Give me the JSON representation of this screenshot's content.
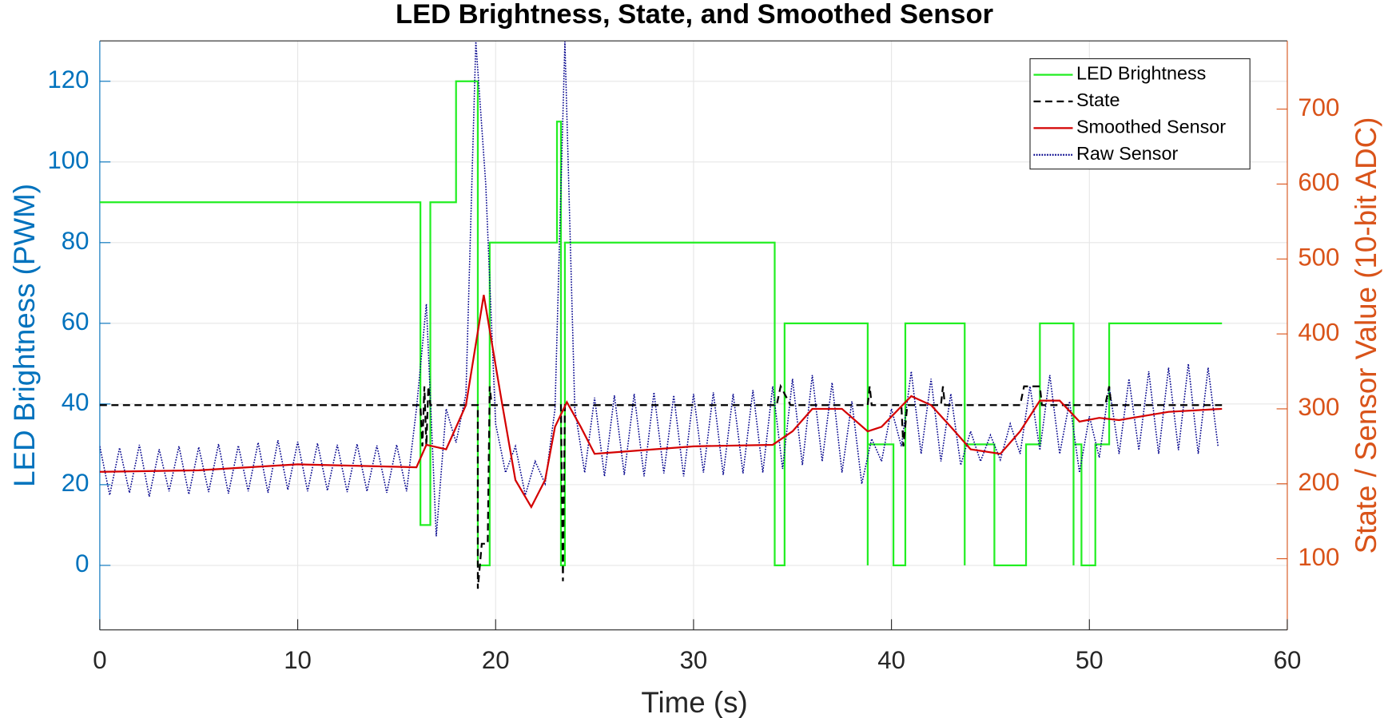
{
  "chart_data": {
    "type": "line",
    "title": "LED Brightness, State, and Smoothed Sensor",
    "xlabel": "Time (s)",
    "ylabel": "LED Brightness (PWM)",
    "y2label": "State / Sensor Value (10-bit ADC)",
    "xlim": [
      0,
      60
    ],
    "xticks": [
      0,
      10,
      20,
      30,
      40,
      50,
      60
    ],
    "ylim": [
      -16,
      130
    ],
    "yticks": [
      0,
      20,
      40,
      60,
      80,
      100,
      120
    ],
    "y2lim": [
      5,
      791
    ],
    "y2ticks": [
      100,
      200,
      300,
      400,
      500,
      600,
      700
    ],
    "ycolor": "#0072bd",
    "y2color": "#d95319",
    "grid": true,
    "legend": "upper right",
    "series": [
      {
        "name": "LED Brightness",
        "color": "#22ee22",
        "style": "solid",
        "axis": "y",
        "x": [
          0,
          16.2,
          16.2,
          16.7,
          16.7,
          18,
          18,
          19.1,
          19.1,
          19.7,
          19.7,
          23.1,
          23.1,
          23.3,
          23.3,
          23.5,
          23.5,
          34.1,
          34.1,
          34.6,
          34.6,
          38.8,
          38.8,
          38.8,
          40.1,
          40.1,
          40.7,
          40.7,
          43.7,
          43.7,
          43.7,
          45.2,
          45.2,
          46.8,
          46.8,
          47.5,
          47.5,
          49.2,
          49.2,
          49.2,
          49.6,
          49.6,
          50.3,
          50.3,
          51.0,
          51.0,
          56.7
        ],
        "values": [
          90,
          90,
          10,
          10,
          90,
          90,
          120,
          120,
          0,
          0,
          80,
          80,
          110,
          110,
          0,
          0,
          80,
          80,
          0,
          0,
          60,
          60,
          0,
          30,
          30,
          0,
          0,
          60,
          60,
          0,
          30,
          30,
          0,
          0,
          30,
          30,
          60,
          60,
          0,
          30,
          30,
          0,
          0,
          30,
          30,
          60,
          60
        ]
      },
      {
        "name": "State",
        "color": "#000000",
        "style": "dashed",
        "axis": "y2",
        "x": [
          0,
          16.2,
          16.3,
          16.4,
          16.5,
          16.6,
          16.7,
          19.1,
          19.1,
          19.3,
          19.6,
          19.7,
          19.8,
          23.3,
          23.4,
          23.5,
          34.2,
          34.4,
          34.9,
          38.8,
          38.9,
          39,
          40.5,
          40.6,
          40.8,
          42.5,
          42.6,
          42.7,
          46.5,
          46.7,
          47.5,
          47.6,
          50.8,
          51,
          51.1,
          56.7
        ],
        "values": [
          305,
          305,
          250,
          330,
          250,
          330,
          305,
          305,
          60,
          120,
          120,
          330,
          305,
          305,
          70,
          305,
          305,
          330,
          305,
          305,
          330,
          305,
          305,
          250,
          305,
          305,
          330,
          305,
          305,
          330,
          330,
          305,
          305,
          330,
          305,
          305
        ]
      },
      {
        "name": "Smoothed Sensor",
        "color": "#d40000",
        "style": "solid",
        "axis": "y2",
        "x": [
          0,
          5,
          10,
          16,
          16.5,
          17.5,
          18.5,
          19.4,
          20.3,
          21,
          21.8,
          22.5,
          23,
          23.6,
          24.3,
          25,
          30,
          34,
          35,
          36,
          37.5,
          38.8,
          39.5,
          41,
          42,
          43,
          44,
          45.5,
          46.5,
          47.5,
          48.5,
          49.5,
          50.5,
          51.5,
          54,
          56.7
        ],
        "values": [
          216,
          218,
          226,
          222,
          252,
          246,
          305,
          452,
          311,
          205,
          169,
          205,
          276,
          309,
          276,
          240,
          250,
          252,
          270,
          300,
          300,
          270,
          276,
          317,
          305,
          276,
          246,
          240,
          270,
          311,
          311,
          283,
          288,
          285,
          296,
          300
        ]
      },
      {
        "name": "Raw Sensor",
        "color": "#00008b",
        "style": "dotted",
        "axis": "y2",
        "x": [
          0,
          0.5,
          1,
          1.5,
          2,
          2.5,
          3,
          3.5,
          4,
          4.5,
          5,
          5.5,
          6,
          6.5,
          7,
          7.5,
          8,
          8.5,
          9,
          9.5,
          10,
          10.5,
          11,
          11.5,
          12,
          12.5,
          13,
          13.5,
          14,
          14.5,
          15,
          15.5,
          16,
          16.5,
          17,
          17.5,
          18,
          18.5,
          19,
          19.5,
          20,
          20.5,
          21,
          21.5,
          22,
          22.5,
          23,
          23.5,
          24,
          24.5,
          25,
          25.5,
          26,
          26.5,
          27,
          27.5,
          28,
          28.5,
          29,
          29.5,
          30,
          30.5,
          31,
          31.5,
          32,
          32.5,
          33,
          33.5,
          34,
          34.5,
          35,
          35.5,
          36,
          36.5,
          37,
          37.5,
          38,
          38.5,
          39,
          39.5,
          40,
          40.5,
          41,
          41.5,
          42,
          42.5,
          43,
          43.5,
          44,
          44.5,
          45,
          45.5,
          46,
          46.5,
          47,
          47.5,
          48,
          48.5,
          49,
          49.5,
          50,
          50.5,
          51,
          51.5,
          52,
          52.5,
          53,
          53.5,
          54,
          54.5,
          55,
          55.5,
          56,
          56.5
        ],
        "values": [
          250,
          185,
          248,
          188,
          252,
          183,
          246,
          190,
          250,
          186,
          249,
          189,
          253,
          187,
          251,
          190,
          255,
          188,
          258,
          192,
          256,
          190,
          254,
          191,
          252,
          189,
          253,
          190,
          251,
          188,
          252,
          190,
          300,
          440,
          130,
          300,
          255,
          320,
          790,
          600,
          280,
          215,
          250,
          185,
          230,
          200,
          300,
          790,
          300,
          215,
          315,
          210,
          318,
          212,
          320,
          210,
          322,
          214,
          318,
          210,
          320,
          215,
          322,
          212,
          320,
          214,
          325,
          215,
          330,
          220,
          340,
          225,
          345,
          230,
          335,
          215,
          310,
          200,
          260,
          230,
          300,
          250,
          350,
          240,
          340,
          230,
          320,
          225,
          270,
          230,
          265,
          232,
          280,
          240,
          330,
          245,
          345,
          240,
          310,
          215,
          290,
          235,
          330,
          240,
          340,
          245,
          350,
          240,
          355,
          245,
          360,
          240,
          355,
          250
        ]
      }
    ]
  }
}
